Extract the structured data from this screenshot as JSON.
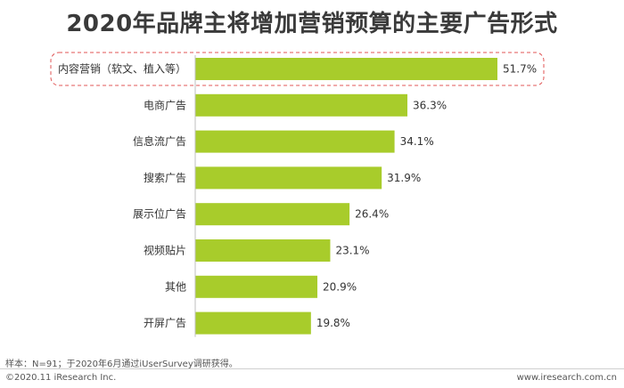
{
  "chart_data": {
    "type": "bar",
    "orientation": "horizontal",
    "title": "2020年品牌主将增加营销预算的主要广告形式",
    "categories": [
      "内容营销（软文、植入等）",
      "电商广告",
      "信息流广告",
      "搜索广告",
      "展示位广告",
      "视频贴片",
      "其他",
      "开屏广告"
    ],
    "values": [
      51.7,
      36.3,
      34.1,
      31.9,
      26.4,
      23.1,
      20.9,
      19.8
    ],
    "value_labels": [
      "51.7%",
      "36.3%",
      "34.1%",
      "31.9%",
      "26.4%",
      "23.1%",
      "20.9%",
      "19.8%"
    ],
    "unit": "%",
    "xlim": [
      0,
      60
    ],
    "grid": false,
    "highlighted_index": 0,
    "bar_color": "#a8cc2b",
    "highlight_border_color": "#e05555"
  },
  "footer": {
    "sample_note": "样本：N=91；于2020年6月通过iUserSurvey调研获得。",
    "copyright": "©2020.11 iResearch Inc.",
    "website": "www.iresearch.com.cn"
  }
}
